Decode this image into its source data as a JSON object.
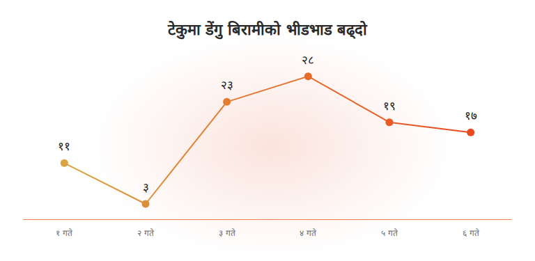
{
  "chart_data": {
    "type": "line",
    "title": "टेकुमा डेंगु बिरामीको भीडभाड बढ्दो",
    "categories": [
      "१ गते",
      "२ गते",
      "३ गते",
      "४ गते",
      "५ गते",
      "६ गते"
    ],
    "values": [
      11,
      3,
      23,
      28,
      19,
      17
    ],
    "value_labels": [
      "११",
      "३",
      "२३",
      "२८",
      "१९",
      "१७"
    ],
    "colors": [
      "#d9a441",
      "#dc8f38",
      "#e17c31",
      "#e66b2b",
      "#e85a26",
      "#ea4a21"
    ],
    "ylim": [
      0,
      30
    ],
    "yticks": [
      0,
      30
    ],
    "grid": false,
    "data_labels": true,
    "tick_labels": "x",
    "marker": "circle"
  }
}
